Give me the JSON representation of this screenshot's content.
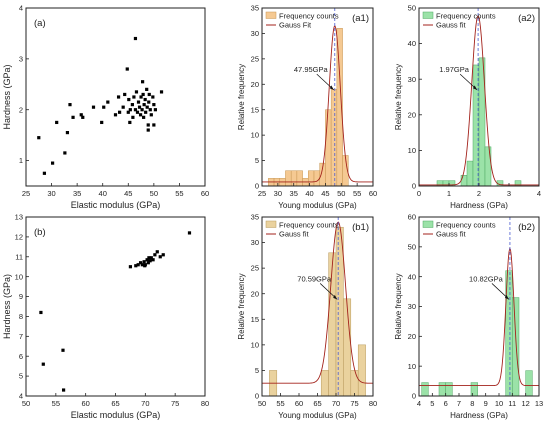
{
  "chart_data": [
    {
      "id": "a",
      "type": "scatter",
      "panel_label": "(a)",
      "xlabel": "Elastic modulus (GPa)",
      "ylabel": "Hardness (GPa)",
      "xlim": [
        25,
        60
      ],
      "ylim": [
        0.5,
        4
      ],
      "xticks": [
        25,
        30,
        35,
        40,
        45,
        50,
        55,
        60
      ],
      "yticks": [
        1,
        2,
        3,
        4
      ],
      "color": "#000000",
      "points": [
        [
          27.5,
          1.45
        ],
        [
          28.6,
          0.75
        ],
        [
          30.2,
          0.95
        ],
        [
          31.0,
          1.75
        ],
        [
          32.6,
          1.15
        ],
        [
          33.1,
          1.55
        ],
        [
          33.6,
          2.1
        ],
        [
          34.2,
          1.85
        ],
        [
          35.8,
          1.9
        ],
        [
          36.1,
          1.85
        ],
        [
          38.2,
          2.05
        ],
        [
          39.8,
          1.75
        ],
        [
          40.2,
          2.05
        ],
        [
          41.0,
          2.15
        ],
        [
          42.5,
          1.9
        ],
        [
          43.1,
          2.25
        ],
        [
          43.3,
          1.95
        ],
        [
          44.0,
          2.05
        ],
        [
          44.3,
          2.3
        ],
        [
          45.0,
          1.95
        ],
        [
          45.1,
          2.2
        ],
        [
          45.4,
          2.0
        ],
        [
          45.8,
          2.1
        ],
        [
          45.9,
          1.85
        ],
        [
          46.1,
          2.25
        ],
        [
          46.4,
          2.0
        ],
        [
          46.6,
          2.35
        ],
        [
          46.8,
          1.95
        ],
        [
          47.0,
          2.15
        ],
        [
          47.2,
          2.05
        ],
        [
          47.4,
          1.9
        ],
        [
          47.5,
          2.25
        ],
        [
          47.7,
          2.0
        ],
        [
          47.9,
          2.3
        ],
        [
          48.0,
          1.85
        ],
        [
          48.1,
          2.1
        ],
        [
          48.3,
          2.2
        ],
        [
          48.4,
          1.95
        ],
        [
          48.6,
          2.4
        ],
        [
          48.7,
          2.05
        ],
        [
          48.9,
          1.7
        ],
        [
          49.0,
          2.15
        ],
        [
          49.1,
          2.3
        ],
        [
          49.3,
          2.0
        ],
        [
          49.5,
          1.9
        ],
        [
          49.8,
          2.25
        ],
        [
          50.0,
          2.1
        ],
        [
          50.3,
          2.0
        ],
        [
          51.5,
          2.35
        ],
        [
          44.8,
          2.8
        ],
        [
          46.4,
          3.4
        ],
        [
          47.8,
          2.55
        ],
        [
          48.9,
          1.6
        ],
        [
          50.0,
          1.7
        ],
        [
          45.3,
          1.75
        ]
      ]
    },
    {
      "id": "b",
      "type": "scatter",
      "panel_label": "(b)",
      "xlabel": "Elastic modulus (GPa)",
      "ylabel": "Hardness (GPa)",
      "xlim": [
        50,
        80
      ],
      "ylim": [
        4,
        13
      ],
      "xticks": [
        50,
        55,
        60,
        65,
        70,
        75,
        80
      ],
      "yticks": [
        4,
        5,
        6,
        7,
        8,
        9,
        10,
        11,
        12,
        13
      ],
      "color": "#000000",
      "points": [
        [
          52.5,
          8.2
        ],
        [
          52.9,
          5.6
        ],
        [
          56.2,
          6.3
        ],
        [
          56.3,
          4.3
        ],
        [
          67.5,
          10.5
        ],
        [
          68.4,
          10.55
        ],
        [
          68.8,
          10.6
        ],
        [
          69.2,
          10.7
        ],
        [
          69.5,
          10.6
        ],
        [
          69.8,
          10.75
        ],
        [
          70.0,
          10.6
        ],
        [
          70.3,
          10.85
        ],
        [
          70.5,
          10.7
        ],
        [
          70.8,
          10.8
        ],
        [
          71.0,
          10.95
        ],
        [
          71.3,
          10.85
        ],
        [
          71.6,
          11.1
        ],
        [
          72.0,
          11.25
        ],
        [
          72.5,
          11.0
        ],
        [
          73.0,
          11.1
        ],
        [
          69.9,
          10.55
        ],
        [
          70.6,
          10.95
        ],
        [
          77.4,
          12.2
        ]
      ]
    },
    {
      "id": "a1",
      "type": "bar",
      "panel_label": "(a1)",
      "xlabel": "Young modulus (GPa)",
      "ylabel": "Relative frequency",
      "xlim": [
        25,
        60
      ],
      "ylim": [
        0,
        35
      ],
      "xticks": [
        25,
        30,
        35,
        40,
        45,
        50,
        55,
        60
      ],
      "yticks": [
        0,
        5,
        10,
        15,
        20,
        25,
        30,
        35
      ],
      "bin_width": 1.8,
      "bins": [
        {
          "start": 27.0,
          "value": 1.5
        },
        {
          "start": 28.8,
          "value": 1.5
        },
        {
          "start": 30.6,
          "value": 1.5
        },
        {
          "start": 32.4,
          "value": 3.0
        },
        {
          "start": 34.2,
          "value": 3.0
        },
        {
          "start": 36.0,
          "value": 3.0
        },
        {
          "start": 37.8,
          "value": 1.5
        },
        {
          "start": 39.6,
          "value": 3.0
        },
        {
          "start": 41.4,
          "value": 3.0
        },
        {
          "start": 43.2,
          "value": 4.5
        },
        {
          "start": 45.0,
          "value": 15.0
        },
        {
          "start": 46.8,
          "value": 19.0
        },
        {
          "start": 48.6,
          "value": 31.0
        },
        {
          "start": 50.4,
          "value": 6.0
        }
      ],
      "bar_color": "#f5c992",
      "bar_edge": "#c79552",
      "fit_color": "#a3221b",
      "fit": {
        "amplitude": 30.7,
        "mean": 47.95,
        "sigma": 1.75,
        "baseline": 0.8
      },
      "annotation": "47.95GPa",
      "legend": [
        "Frequency counts",
        "Gauss Fit"
      ],
      "legend_position": "top-left"
    },
    {
      "id": "a2",
      "type": "bar",
      "panel_label": "(a2)",
      "xlabel": "Hardness (GPa)",
      "ylabel": "Relative frequency",
      "xlim": [
        0,
        4
      ],
      "ylim": [
        0,
        50
      ],
      "xticks": [
        0,
        1,
        2,
        3,
        4
      ],
      "yticks": [
        0,
        10,
        20,
        30,
        40,
        50
      ],
      "bin_width": 0.2,
      "bins": [
        {
          "start": 0.6,
          "value": 1.5
        },
        {
          "start": 0.8,
          "value": 1.5
        },
        {
          "start": 1.0,
          "value": 1.5
        },
        {
          "start": 1.4,
          "value": 3.0
        },
        {
          "start": 1.6,
          "value": 7.0
        },
        {
          "start": 1.8,
          "value": 34.0
        },
        {
          "start": 2.0,
          "value": 36.0
        },
        {
          "start": 2.2,
          "value": 11.0
        },
        {
          "start": 2.6,
          "value": 1.5
        },
        {
          "start": 3.2,
          "value": 1.5
        }
      ],
      "bar_color": "#9be2a8",
      "bar_edge": "#4fa863",
      "fit_color": "#a3221b",
      "fit": {
        "amplitude": 47.5,
        "mean": 1.97,
        "sigma": 0.21,
        "baseline": 0.3
      },
      "annotation": "1.97GPa",
      "legend": [
        "Frequency counts",
        "Gauss fit"
      ],
      "legend_position": "top-left"
    },
    {
      "id": "b1",
      "type": "bar",
      "panel_label": "(b1)",
      "xlabel": "Young modulus (GPa)",
      "ylabel": "Relative frequency",
      "xlim": [
        50,
        80
      ],
      "ylim": [
        0,
        35
      ],
      "xticks": [
        50,
        55,
        60,
        65,
        70,
        75,
        80
      ],
      "yticks": [
        0,
        5,
        10,
        15,
        20,
        25,
        30,
        35
      ],
      "bin_width": 2.0,
      "bins": [
        {
          "start": 52.0,
          "value": 5.0
        },
        {
          "start": 66.0,
          "value": 5.0
        },
        {
          "start": 68.0,
          "value": 28.0
        },
        {
          "start": 70.0,
          "value": 33.0
        },
        {
          "start": 72.0,
          "value": 19.0
        },
        {
          "start": 74.0,
          "value": 5.0
        },
        {
          "start": 76.0,
          "value": 10.0
        }
      ],
      "bar_color": "#ead29e",
      "bar_edge": "#b89a5c",
      "fit_color": "#a3221b",
      "fit": {
        "amplitude": 31.5,
        "mean": 70.59,
        "sigma": 2.0,
        "baseline": 2.5
      },
      "annotation": "70.59GPa",
      "legend": [
        "Frequency counts",
        "Gauss fit"
      ],
      "legend_position": "top-left"
    },
    {
      "id": "b2",
      "type": "bar",
      "panel_label": "(b2)",
      "xlabel": "Hardness (GPa)",
      "ylabel": "Relative frequency",
      "xlim": [
        4,
        13
      ],
      "ylim": [
        0,
        60
      ],
      "xticks": [
        4,
        5,
        6,
        7,
        8,
        9,
        10,
        11,
        12,
        13
      ],
      "yticks": [
        0,
        10,
        20,
        30,
        40,
        50,
        60
      ],
      "bin_width": 0.5,
      "bins": [
        {
          "start": 4.2,
          "value": 4.5
        },
        {
          "start": 5.5,
          "value": 4.5
        },
        {
          "start": 6.0,
          "value": 4.5
        },
        {
          "start": 7.9,
          "value": 4.5
        },
        {
          "start": 10.5,
          "value": 42.0
        },
        {
          "start": 11.0,
          "value": 33.0
        },
        {
          "start": 12.0,
          "value": 8.5
        }
      ],
      "bar_color": "#9be2a8",
      "bar_edge": "#4fa863",
      "fit_color": "#a3221b",
      "fit": {
        "amplitude": 46.0,
        "mean": 10.82,
        "sigma": 0.3,
        "baseline": 3.5
      },
      "annotation": "10.82GPa",
      "legend": [
        "Frequency counts",
        "Gauss fit"
      ],
      "legend_position": "top-left"
    }
  ]
}
